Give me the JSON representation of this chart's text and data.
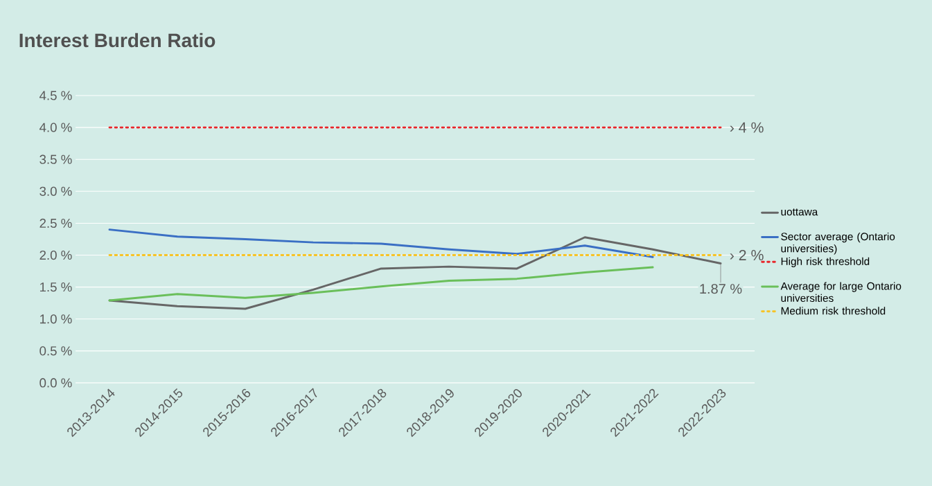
{
  "chart_data": {
    "type": "line",
    "title": "Interest Burden Ratio",
    "categories": [
      "2013-2014",
      "2014-2015",
      "2015-2016",
      "2016-2017",
      "2017-2018",
      "2018-2019",
      "2019-2020",
      "2020-2021",
      "2021-2022",
      "2022-2023"
    ],
    "series": [
      {
        "name": "uottawa",
        "color": "#666666",
        "values": [
          1.29,
          1.2,
          1.16,
          1.46,
          1.79,
          1.82,
          1.79,
          2.28,
          2.09,
          1.87
        ]
      },
      {
        "name": "Sector average (Ontario universities)",
        "color": "#3a6fc4",
        "values": [
          2.4,
          2.29,
          2.25,
          2.2,
          2.18,
          2.09,
          2.02,
          2.15,
          1.97,
          null
        ]
      },
      {
        "name": "High risk threshold",
        "color": "#e8262a",
        "line_style": "dotted",
        "values": [
          4,
          4,
          4,
          4,
          4,
          4,
          4,
          4,
          4,
          4
        ]
      },
      {
        "name": "Average for large Ontario universities",
        "color": "#6abf5a",
        "values": [
          1.29,
          1.39,
          1.33,
          1.41,
          1.51,
          1.6,
          1.63,
          1.73,
          1.81,
          null
        ]
      },
      {
        "name": "Medium risk threshold",
        "color": "#f7c325",
        "line_style": "dotted",
        "values": [
          2,
          2,
          2,
          2,
          2,
          2,
          2,
          2,
          2,
          2
        ]
      }
    ],
    "ylim": [
      0,
      4.5
    ],
    "yticks": [
      {
        "value": 0,
        "label": "0.0 %"
      },
      {
        "value": 0.5,
        "label": "0.5 %"
      },
      {
        "value": 1,
        "label": "1.0 %"
      },
      {
        "value": 1.5,
        "label": "1.5 %"
      },
      {
        "value": 2,
        "label": "2.0 %"
      },
      {
        "value": 2.5,
        "label": "2.5 %"
      },
      {
        "value": 3,
        "label": "3.0 %"
      },
      {
        "value": 3.5,
        "label": "3.5 %"
      },
      {
        "value": 4,
        "label": "4.0 %"
      },
      {
        "value": 4.5,
        "label": "4.5 %"
      }
    ],
    "annotations": [
      {
        "text": "› 4 %",
        "x": "2022-2023",
        "y": 4
      },
      {
        "text": "› 2 %",
        "x": "2022-2023",
        "y": 2
      },
      {
        "text": "1.87 %",
        "x": "2022-2023",
        "y": 1.87
      }
    ],
    "grid": "y",
    "legend": "right"
  }
}
